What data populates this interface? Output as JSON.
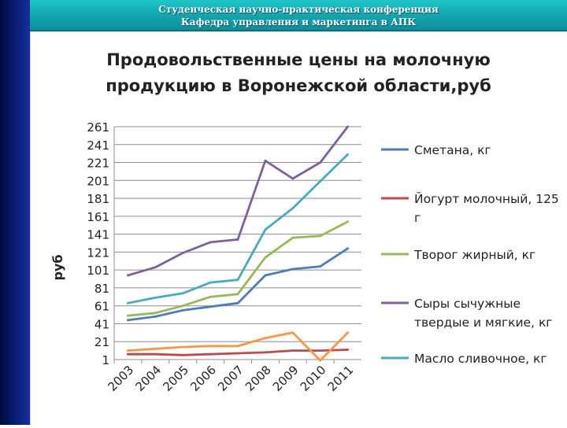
{
  "header": {
    "line1": "Студенческая научно-практическая конференция",
    "line2": "Кафедра управления и маркетинга в АПК"
  },
  "colors": {
    "side_band": "#0a1e78",
    "header": "#14a6b0"
  },
  "chart_data": {
    "type": "line",
    "title_line1": "Продовольственные цены на молочную",
    "title_line2": "продукцию в Воронежской области,руб",
    "xlabel": "",
    "ylabel": "руб",
    "ylim": [
      1,
      261
    ],
    "yticks": [
      1,
      21,
      41,
      61,
      81,
      101,
      121,
      141,
      161,
      181,
      201,
      221,
      241,
      261
    ],
    "categories": [
      "2003",
      "2004",
      "2005",
      "2006",
      "2007",
      "2008",
      "2009",
      "2010",
      "2011"
    ],
    "grid": true,
    "legend_position": "right",
    "series": [
      {
        "name": "Сметана, кг",
        "name_lines": [
          "Сметана, кг"
        ],
        "color": "#4a7ebb",
        "values": [
          45,
          49,
          56,
          60,
          64,
          95,
          102,
          105,
          125
        ]
      },
      {
        "name": "Йогурт молочный, 125 г",
        "name_lines": [
          "Йогурт молочный, 125",
          "г"
        ],
        "color": "#be4b48",
        "values": [
          7,
          7,
          6,
          7,
          8,
          9,
          11,
          11,
          12
        ]
      },
      {
        "name": "Творог жирный, кг",
        "name_lines": [
          "Творог жирный, кг"
        ],
        "color": "#98b954",
        "values": [
          50,
          53,
          61,
          71,
          74,
          115,
          137,
          139,
          155
        ]
      },
      {
        "name": "Сыры сычужные твердые и мягкие, кг",
        "name_lines": [
          "Сыры сычужные",
          "твердые и мягкие, кг"
        ],
        "color": "#7d60a0",
        "values": [
          95,
          104,
          120,
          132,
          135,
          223,
          203,
          221,
          261
        ]
      },
      {
        "name": "Масло сливочное, кг",
        "name_lines": [
          "Масло сливочное, кг"
        ],
        "color": "#46aac5",
        "values": [
          64,
          70,
          75,
          87,
          90,
          146,
          170,
          200,
          230
        ]
      },
      {
        "name": "",
        "name_lines": [],
        "color": "#f79646",
        "values": [
          11,
          13,
          15,
          16,
          16,
          25,
          31,
          0,
          31
        ]
      }
    ]
  }
}
